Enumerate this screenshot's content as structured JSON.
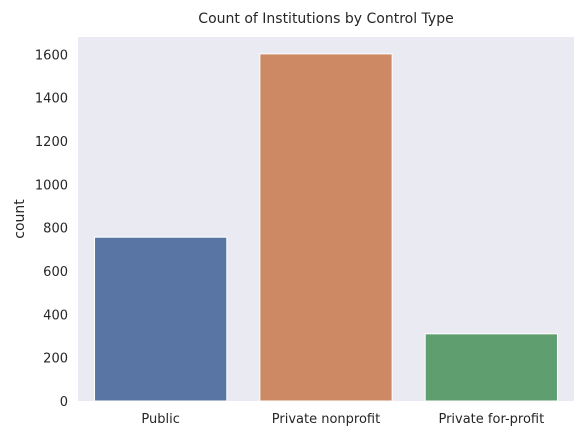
{
  "chart_data": {
    "type": "bar",
    "title": "Count of Institutions by Control Type",
    "xlabel": "",
    "ylabel": "count",
    "categories": [
      "Public",
      "Private nonprofit",
      "Private for-profit"
    ],
    "values": [
      756,
      1602,
      310
    ],
    "colors": [
      "#5975a4",
      "#cc8963",
      "#5f9e6e"
    ],
    "ylim": [
      0,
      1680
    ],
    "yticks": [
      0,
      200,
      400,
      600,
      800,
      1000,
      1200,
      1400,
      1600
    ],
    "plot_background": "#eaeaf2",
    "grid": false,
    "legend": "none"
  }
}
